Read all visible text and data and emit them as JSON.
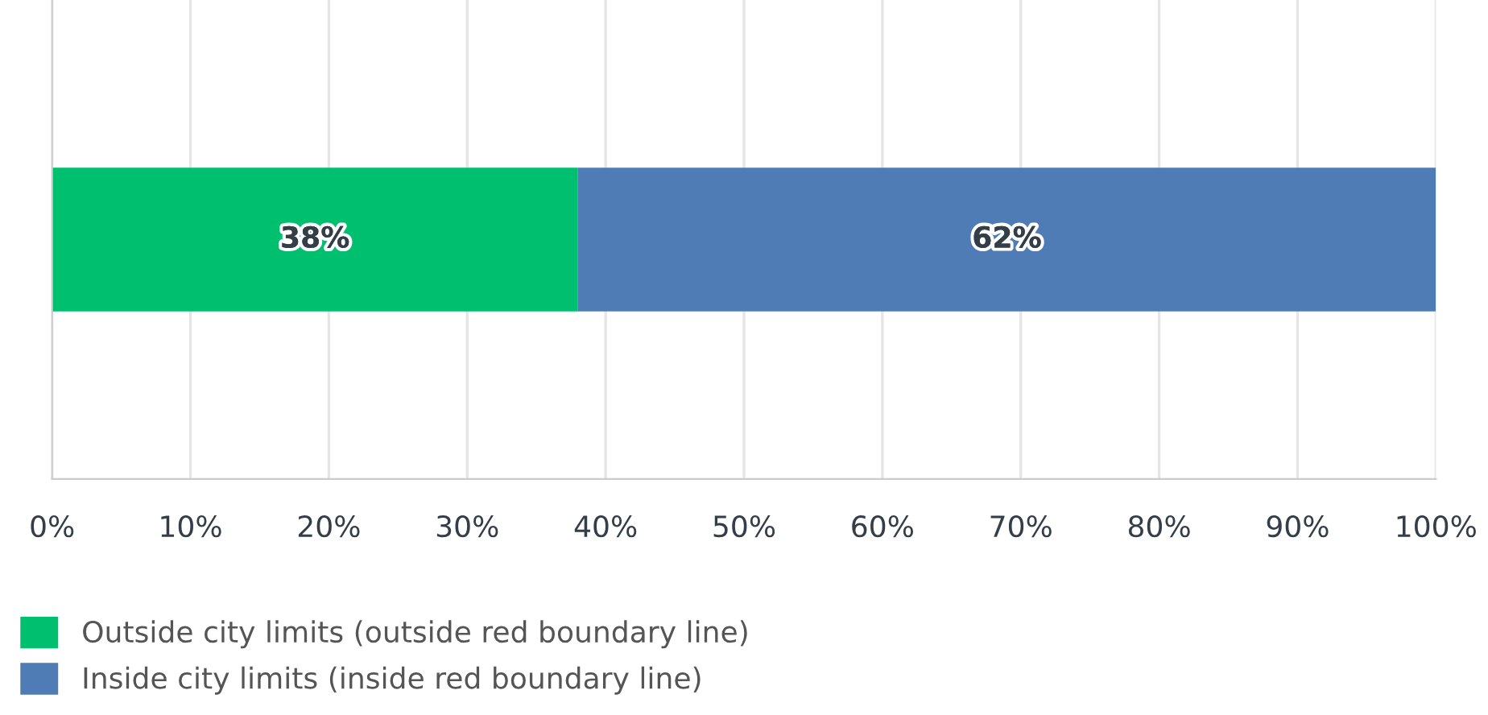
{
  "chart_data": {
    "type": "bar",
    "orientation": "horizontal",
    "stacked": true,
    "categories": [
      null
    ],
    "series": [
      {
        "name": "Outside city limits (outside red boundary line)",
        "color": "#00bf6f",
        "values": [
          38
        ],
        "value_labels": [
          "38%"
        ]
      },
      {
        "name": "Inside city limits (inside red boundary line)",
        "color": "#507cb6",
        "values": [
          62
        ],
        "value_labels": [
          "62%"
        ]
      }
    ],
    "xlim": [
      0,
      100
    ],
    "xticks": [
      {
        "value": 0,
        "label": "0%"
      },
      {
        "value": 10,
        "label": "10%"
      },
      {
        "value": 20,
        "label": "20%"
      },
      {
        "value": 30,
        "label": "30%"
      },
      {
        "value": 40,
        "label": "40%"
      },
      {
        "value": 50,
        "label": "50%"
      },
      {
        "value": 60,
        "label": "60%"
      },
      {
        "value": 70,
        "label": "70%"
      },
      {
        "value": 80,
        "label": "80%"
      },
      {
        "value": 90,
        "label": "90%"
      },
      {
        "value": 100,
        "label": "100%"
      }
    ],
    "grid": "x",
    "legend": "bottom left"
  }
}
